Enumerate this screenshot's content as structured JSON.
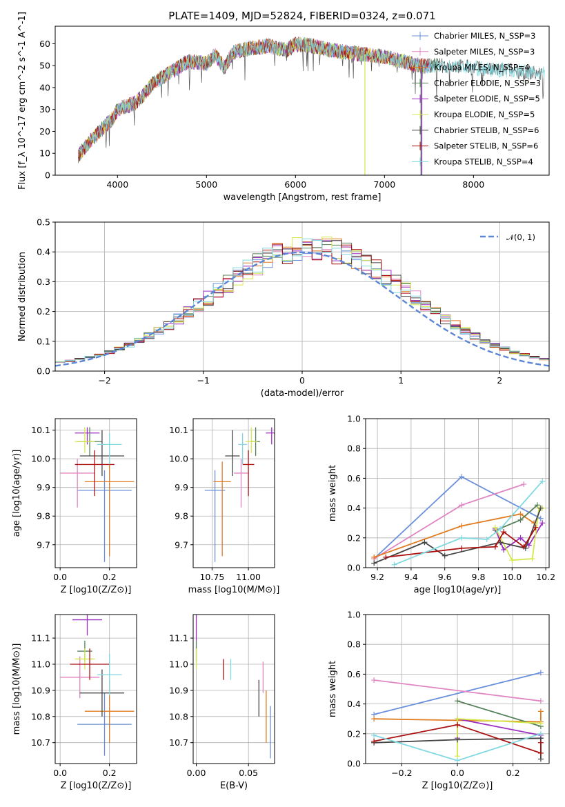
{
  "figure": {
    "title": "PLATE=1409, MJD=52824, FIBERID=0324, z=0.071"
  },
  "colors": [
    "#6a8fdb",
    "#e085c2",
    "#e07b20",
    "#55805a",
    "#9b30c0",
    "#d4e84a",
    "#444444",
    "#aa1010",
    "#80d8e0"
  ],
  "legend": {
    "entries": [
      "Chabrier MILES, N_SSP=3",
      "Salpeter MILES, N_SSP=3",
      "Kroupa MILES, N_SSP=4",
      "Chabrier ELODIE, N_SSP=3",
      "Salpeter ELODIE, N_SSP=5",
      "Kroupa ELODIE, N_SSP=5",
      "Chabrier STELIB, N_SSP=6",
      "Salpeter STELIB, N_SSP=6",
      "Kroupa STELIB, N_SSP=4"
    ],
    "normal_label": "𝒩(0, 1)"
  },
  "chart_data": [
    {
      "id": "spectrum",
      "type": "line",
      "xlabel": "wavelength [Angstrom, rest frame]",
      "ylabel": "Flux [f_λ 10^-17 erg cm^-2 s^-1 A^-1]",
      "xlim": [
        3300,
        8850
      ],
      "ylim": [
        0,
        68
      ],
      "xticks": [
        4000,
        5000,
        6000,
        7000,
        8000
      ],
      "yticks": [
        0,
        10,
        20,
        30,
        40,
        50,
        60
      ],
      "continuum": {
        "x": [
          3560,
          3700,
          3850,
          3950,
          4000,
          4200,
          4300,
          4400,
          4600,
          4800,
          5000,
          5100,
          5200,
          5300,
          5500,
          5700,
          5900,
          6000,
          6200,
          6400,
          6600,
          6800,
          7000,
          7200,
          7400,
          7600,
          7800,
          8000,
          8200,
          8400,
          8600,
          8800
        ],
        "y": [
          9,
          16,
          22,
          26,
          30,
          33,
          37,
          42,
          47,
          52,
          51,
          55,
          49,
          56,
          58,
          59,
          57,
          60,
          59,
          57,
          56,
          55,
          54,
          52,
          50,
          50,
          50,
          49,
          48,
          48,
          47,
          46
        ]
      },
      "series_labels": "legend.entries"
    },
    {
      "id": "residual_hist",
      "type": "bar",
      "xlabel": "(data-model)/error",
      "ylabel": "Normed distribution",
      "xlim": [
        -2.5,
        2.5
      ],
      "ylim": [
        0,
        0.5
      ],
      "xticks": [
        -2,
        -1,
        0,
        1,
        2
      ],
      "yticks": [
        0.0,
        0.1,
        0.2,
        0.3,
        0.4,
        0.5
      ],
      "bin_width": 0.1,
      "reference_curve": "normal(0,1)"
    },
    {
      "id": "age_vs_Z",
      "type": "scatter",
      "xlabel": "Z [log10(Z/Z⊙)]",
      "ylabel": "age [log10(age/yr)]",
      "xlim": [
        -0.02,
        0.31
      ],
      "ylim": [
        9.62,
        10.14
      ],
      "xticks": [
        0.0,
        0.2
      ],
      "yticks": [
        9.7,
        9.8,
        9.9,
        10.0,
        10.1
      ],
      "points": [
        {
          "x": 0.18,
          "y": 9.89,
          "xerr": 0.11,
          "yerr_lo": 0.25,
          "yerr_hi": 0.07
        },
        {
          "x": 0.07,
          "y": 9.95,
          "xerr": 0.07,
          "yerr_lo": 0.12,
          "yerr_hi": 0.05
        },
        {
          "x": 0.2,
          "y": 9.92,
          "xerr": 0.1,
          "yerr_lo": 0.26,
          "yerr_hi": 0.07
        },
        {
          "x": 0.12,
          "y": 10.06,
          "xerr": 0.05,
          "yerr_lo": 0.05,
          "yerr_hi": 0.05
        },
        {
          "x": 0.11,
          "y": 10.09,
          "xerr": 0.05,
          "yerr_lo": 0.04,
          "yerr_hi": 0.02
        },
        {
          "x": 0.1,
          "y": 10.06,
          "xerr": 0.04,
          "yerr_lo": 0.04,
          "yerr_hi": 0.05
        },
        {
          "x": 0.17,
          "y": 10.01,
          "xerr": 0.09,
          "yerr_lo": 0.07,
          "yerr_hi": 0.09
        },
        {
          "x": 0.14,
          "y": 9.98,
          "xerr": 0.08,
          "yerr_lo": 0.11,
          "yerr_hi": 0.05
        },
        {
          "x": 0.2,
          "y": 10.05,
          "xerr": 0.05,
          "yerr_lo": 0.07,
          "yerr_hi": 0.04
        }
      ]
    },
    {
      "id": "age_vs_mass",
      "type": "scatter",
      "xlabel": "mass [log10(M/M⊙)]",
      "ylabel": "",
      "xlim": [
        10.62,
        11.18
      ],
      "ylim": [
        9.62,
        10.14
      ],
      "xticks": [
        10.75,
        11.0
      ],
      "yticks": [
        9.7,
        9.8,
        9.9,
        10.0,
        10.1
      ],
      "points": [
        {
          "x": 10.77,
          "y": 9.89,
          "xerr": 0.07,
          "yerr_lo": 0.25,
          "yerr_hi": 0.07
        },
        {
          "x": 10.95,
          "y": 9.95,
          "xerr": 0.05,
          "yerr_lo": 0.12,
          "yerr_hi": 0.05
        },
        {
          "x": 10.82,
          "y": 9.92,
          "xerr": 0.06,
          "yerr_lo": 0.26,
          "yerr_hi": 0.07
        },
        {
          "x": 11.05,
          "y": 10.06,
          "xerr": 0.03,
          "yerr_lo": 0.05,
          "yerr_hi": 0.05
        },
        {
          "x": 11.16,
          "y": 10.09,
          "xerr": 0.04,
          "yerr_lo": 0.04,
          "yerr_hi": 0.02
        },
        {
          "x": 11.02,
          "y": 10.06,
          "xerr": 0.04,
          "yerr_lo": 0.04,
          "yerr_hi": 0.05
        },
        {
          "x": 10.89,
          "y": 10.01,
          "xerr": 0.05,
          "yerr_lo": 0.07,
          "yerr_hi": 0.09
        },
        {
          "x": 11.0,
          "y": 9.98,
          "xerr": 0.04,
          "yerr_lo": 0.11,
          "yerr_hi": 0.05
        },
        {
          "x": 10.96,
          "y": 10.05,
          "xerr": 0.03,
          "yerr_lo": 0.07,
          "yerr_hi": 0.04
        }
      ]
    },
    {
      "id": "weight_vs_age",
      "type": "line",
      "xlabel": "age [log10(age/yr)]",
      "ylabel": "mass weight",
      "xlim": [
        9.13,
        10.22
      ],
      "ylim": [
        0,
        1.0
      ],
      "xticks": [
        9.2,
        9.4,
        9.6,
        9.8,
        10.0,
        10.2
      ],
      "yticks": [
        0.0,
        0.2,
        0.4,
        0.6,
        0.8,
        1.0
      ],
      "series": [
        {
          "x": [
            9.18,
            9.7,
            10.17
          ],
          "y": [
            0.06,
            0.61,
            0.33
          ]
        },
        {
          "x": [
            9.18,
            9.7,
            10.07
          ],
          "y": [
            0.06,
            0.42,
            0.56
          ]
        },
        {
          "x": [
            9.18,
            9.7,
            10.05,
            10.13
          ],
          "y": [
            0.07,
            0.28,
            0.36,
            0.3
          ]
        },
        {
          "x": [
            9.9,
            10.05,
            10.15
          ],
          "y": [
            0.25,
            0.32,
            0.42
          ]
        },
        {
          "x": [
            9.9,
            9.95,
            10.05,
            10.1,
            10.18
          ],
          "y": [
            0.26,
            0.12,
            0.2,
            0.15,
            0.3
          ]
        },
        {
          "x": [
            9.9,
            10.0,
            10.12,
            10.16,
            10.18
          ],
          "y": [
            0.27,
            0.05,
            0.06,
            0.4,
            0.4
          ]
        },
        {
          "x": [
            9.18,
            9.48,
            9.6,
            9.93,
            10.08,
            10.17
          ],
          "y": [
            0.03,
            0.17,
            0.08,
            0.17,
            0.13,
            0.4
          ]
        },
        {
          "x": [
            9.25,
            9.7,
            9.9,
            9.95,
            10.07,
            10.14
          ],
          "y": [
            0.07,
            0.13,
            0.14,
            0.24,
            0.14,
            0.27
          ]
        },
        {
          "x": [
            9.3,
            9.7,
            9.85,
            9.93,
            10.18
          ],
          "y": [
            0.02,
            0.2,
            0.19,
            0.26,
            0.58
          ]
        }
      ]
    },
    {
      "id": "mass_vs_Z",
      "type": "scatter",
      "xlabel": "Z [log10(Z/Z⊙)]",
      "ylabel": "mass [log10(M/M⊙)]",
      "xlim": [
        -0.02,
        0.31
      ],
      "ylim": [
        10.62,
        11.19
      ],
      "xticks": [
        0.0,
        0.2
      ],
      "yticks": [
        10.7,
        10.8,
        10.9,
        11.0,
        11.1
      ],
      "points": [
        {
          "x": 0.18,
          "y": 10.77,
          "xerr": 0.11,
          "yerr": 0.12
        },
        {
          "x": 0.08,
          "y": 10.95,
          "xerr": 0.08,
          "yerr": 0.08
        },
        {
          "x": 0.2,
          "y": 10.82,
          "xerr": 0.1,
          "yerr": 0.12
        },
        {
          "x": 0.1,
          "y": 11.05,
          "xerr": 0.03,
          "yerr": 0.04
        },
        {
          "x": 0.11,
          "y": 11.17,
          "xerr": 0.06,
          "yerr": 0.06
        },
        {
          "x": 0.1,
          "y": 11.02,
          "xerr": 0.04,
          "yerr": 0.04
        },
        {
          "x": 0.17,
          "y": 10.89,
          "xerr": 0.09,
          "yerr": 0.09
        },
        {
          "x": 0.12,
          "y": 11.0,
          "xerr": 0.08,
          "yerr": 0.06
        },
        {
          "x": 0.2,
          "y": 10.96,
          "xerr": 0.05,
          "yerr": 0.08
        }
      ]
    },
    {
      "id": "mass_vs_ebv",
      "type": "scatter",
      "xlabel": "E(B-V)",
      "ylabel": "",
      "xlim": [
        -0.003,
        0.075
      ],
      "ylim": [
        10.62,
        11.19
      ],
      "xticks": [
        0.0,
        0.05
      ],
      "yticks": [
        10.7,
        10.8,
        10.9,
        11.0,
        11.1
      ],
      "points": [
        {
          "x": 0.071,
          "y": 10.74,
          "yerr": 0.1
        },
        {
          "x": 0.064,
          "y": 10.95,
          "yerr": 0.06
        },
        {
          "x": 0.067,
          "y": 10.8,
          "yerr": 0.1
        },
        {
          "x": 0.0,
          "y": 11.05,
          "yerr": 0.04
        },
        {
          "x": 0.0,
          "y": 11.14,
          "yerr": 0.05
        },
        {
          "x": 0.0,
          "y": 11.02,
          "yerr": 0.04
        },
        {
          "x": 0.06,
          "y": 10.87,
          "yerr": 0.07
        },
        {
          "x": 0.026,
          "y": 10.98,
          "yerr": 0.04
        },
        {
          "x": 0.033,
          "y": 10.98,
          "yerr": 0.04
        }
      ]
    },
    {
      "id": "weight_vs_Z",
      "type": "line",
      "xlabel": "Z [log10(Z/Z⊙)]",
      "ylabel": "mass weight",
      "xlim": [
        -0.33,
        0.33
      ],
      "ylim": [
        0,
        1.0
      ],
      "xticks": [
        -0.2,
        0.0,
        0.2
      ],
      "yticks": [
        0.0,
        0.2,
        0.4,
        0.6,
        0.8,
        1.0
      ],
      "series": [
        {
          "x": [
            -0.3,
            0.3
          ],
          "y": [
            0.33,
            0.61
          ]
        },
        {
          "x": [
            -0.3,
            0.3
          ],
          "y": [
            0.56,
            0.42
          ]
        },
        {
          "x": [
            -0.3,
            0.3,
            0.3
          ],
          "y": [
            0.3,
            0.28,
            0.35
          ]
        },
        {
          "x": [
            0.0,
            0.3
          ],
          "y": [
            0.42,
            0.25
          ]
        },
        {
          "x": [
            0.0,
            0.0,
            0.3,
            0.3
          ],
          "y": [
            0.17,
            0.3,
            0.19,
            0.17
          ]
        },
        {
          "x": [
            0.0,
            0.0,
            0.3
          ],
          "y": [
            0.05,
            0.3,
            0.27
          ]
        },
        {
          "x": [
            -0.3,
            0.0,
            0.3,
            0.3
          ],
          "y": [
            0.14,
            0.16,
            0.17,
            0.03
          ]
        },
        {
          "x": [
            -0.3,
            0.0,
            0.3,
            0.3
          ],
          "y": [
            0.15,
            0.26,
            0.07,
            0.14
          ]
        },
        {
          "x": [
            -0.3,
            0.0,
            0.3
          ],
          "y": [
            0.19,
            0.02,
            0.2
          ]
        }
      ]
    }
  ]
}
